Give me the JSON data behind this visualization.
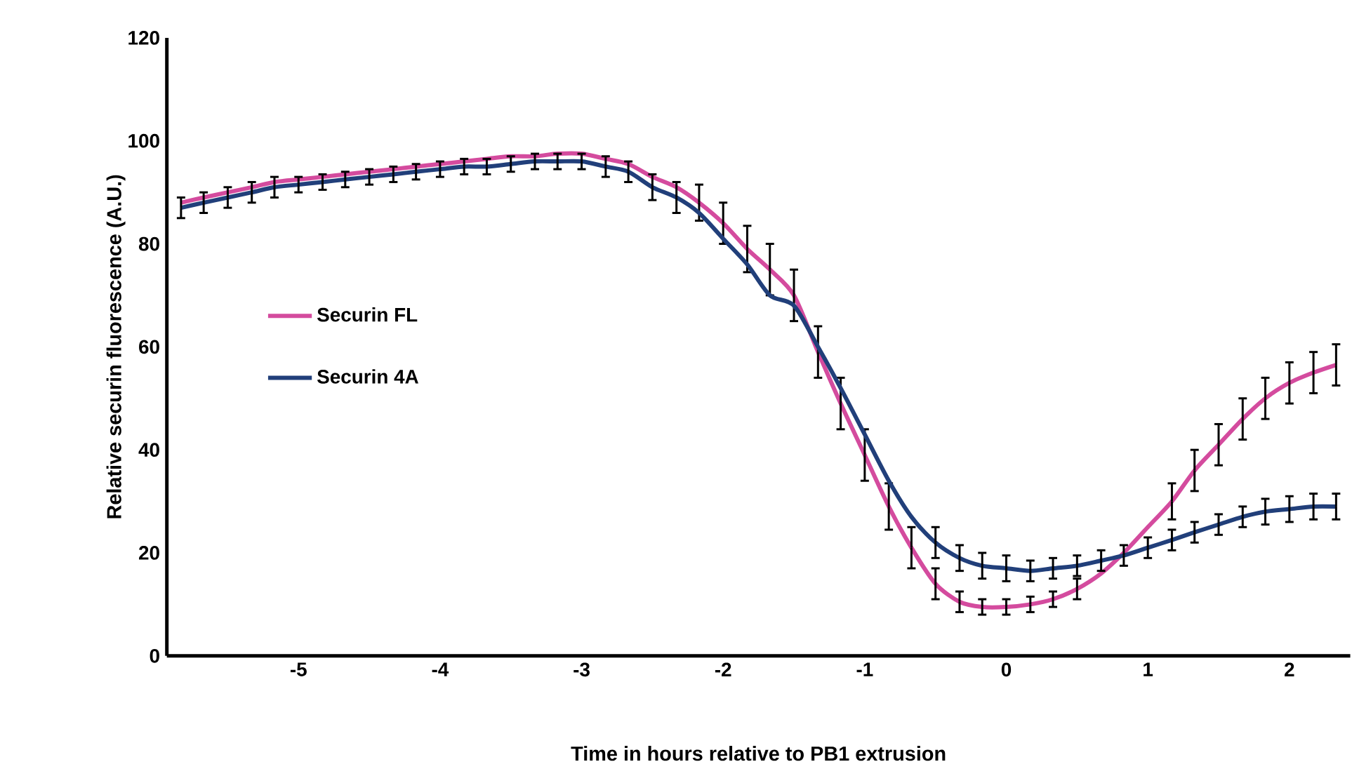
{
  "chart_data": {
    "type": "line",
    "xlabel": "Time in hours relative to PB1 extrusion",
    "ylabel": "Relative securin fluorescence (A.U.)",
    "x": [
      -5.83,
      -5.67,
      -5.5,
      -5.33,
      -5.17,
      -5,
      -4.83,
      -4.67,
      -4.5,
      -4.33,
      -4.17,
      -4,
      -3.83,
      -3.67,
      -3.5,
      -3.33,
      -3.17,
      -3,
      -2.83,
      -2.67,
      -2.5,
      -2.33,
      -2.17,
      -2,
      -1.83,
      -1.67,
      -1.5,
      -1.33,
      -1.17,
      -1,
      -0.83,
      -0.67,
      -0.5,
      -0.33,
      -0.17,
      0,
      0.17,
      0.33,
      0.5,
      0.67,
      0.83,
      1,
      1.17,
      1.33,
      1.5,
      1.67,
      1.83,
      2,
      2.17,
      2.33
    ],
    "series": [
      {
        "name": "Securin FL",
        "color": "#d44b9e",
        "values": [
          88,
          89,
          90,
          91,
          92,
          92.5,
          93,
          93.5,
          94,
          94.5,
          95,
          95.5,
          96,
          96.5,
          97,
          97,
          97.5,
          97.5,
          96.5,
          95.5,
          93,
          91,
          88,
          84,
          79,
          75,
          70,
          59,
          49,
          39,
          29,
          21,
          14,
          10.5,
          9.5,
          9.5,
          10,
          11,
          13,
          16,
          20,
          25,
          30,
          36,
          41,
          46,
          50,
          53,
          55,
          56.5
        ],
        "errors": [
          null,
          null,
          null,
          null,
          null,
          null,
          null,
          null,
          null,
          null,
          null,
          null,
          null,
          null,
          null,
          null,
          null,
          null,
          null,
          null,
          null,
          null,
          3.5,
          4,
          4.5,
          5,
          5,
          5,
          5,
          5,
          4.5,
          4,
          3,
          2,
          1.5,
          1.5,
          1.5,
          1.5,
          2,
          null,
          null,
          null,
          3.5,
          4,
          4,
          4,
          4,
          4,
          4,
          4
        ]
      },
      {
        "name": "Securin 4A",
        "color": "#213f7a",
        "values": [
          87,
          88,
          89,
          90,
          91,
          91.5,
          92,
          92.5,
          93,
          93.5,
          94,
          94.5,
          95,
          95,
          95.5,
          96,
          96,
          96,
          95,
          94,
          91,
          89,
          86,
          81,
          76,
          70,
          68,
          60,
          52,
          43,
          34,
          27,
          22,
          19,
          17.5,
          17,
          16.5,
          17,
          17.5,
          18.5,
          19.5,
          21,
          22.5,
          24,
          25.5,
          27,
          28,
          28.5,
          29,
          29
        ],
        "errors": [
          2,
          2,
          2,
          2,
          2,
          1.5,
          1.5,
          1.5,
          1.5,
          1.5,
          1.5,
          1.5,
          1.5,
          1.5,
          1.5,
          1.5,
          1.5,
          1.5,
          2,
          2,
          2.5,
          3,
          null,
          null,
          null,
          null,
          null,
          null,
          null,
          null,
          null,
          null,
          3,
          2.5,
          2.5,
          2.5,
          2,
          2,
          2,
          2,
          2,
          2,
          2,
          2,
          2,
          2,
          2.5,
          2.5,
          2.5,
          2.5
        ]
      }
    ],
    "xlim": [
      -5.93,
      2.43
    ],
    "ylim": [
      0,
      120
    ],
    "xticks": [
      -5,
      -4,
      -3,
      -2,
      -1,
      0,
      1,
      2
    ],
    "yticks": [
      0,
      20,
      40,
      60,
      80,
      100,
      120
    ],
    "legend": "left",
    "grid": false,
    "marker": "none",
    "line_style": "solid"
  }
}
